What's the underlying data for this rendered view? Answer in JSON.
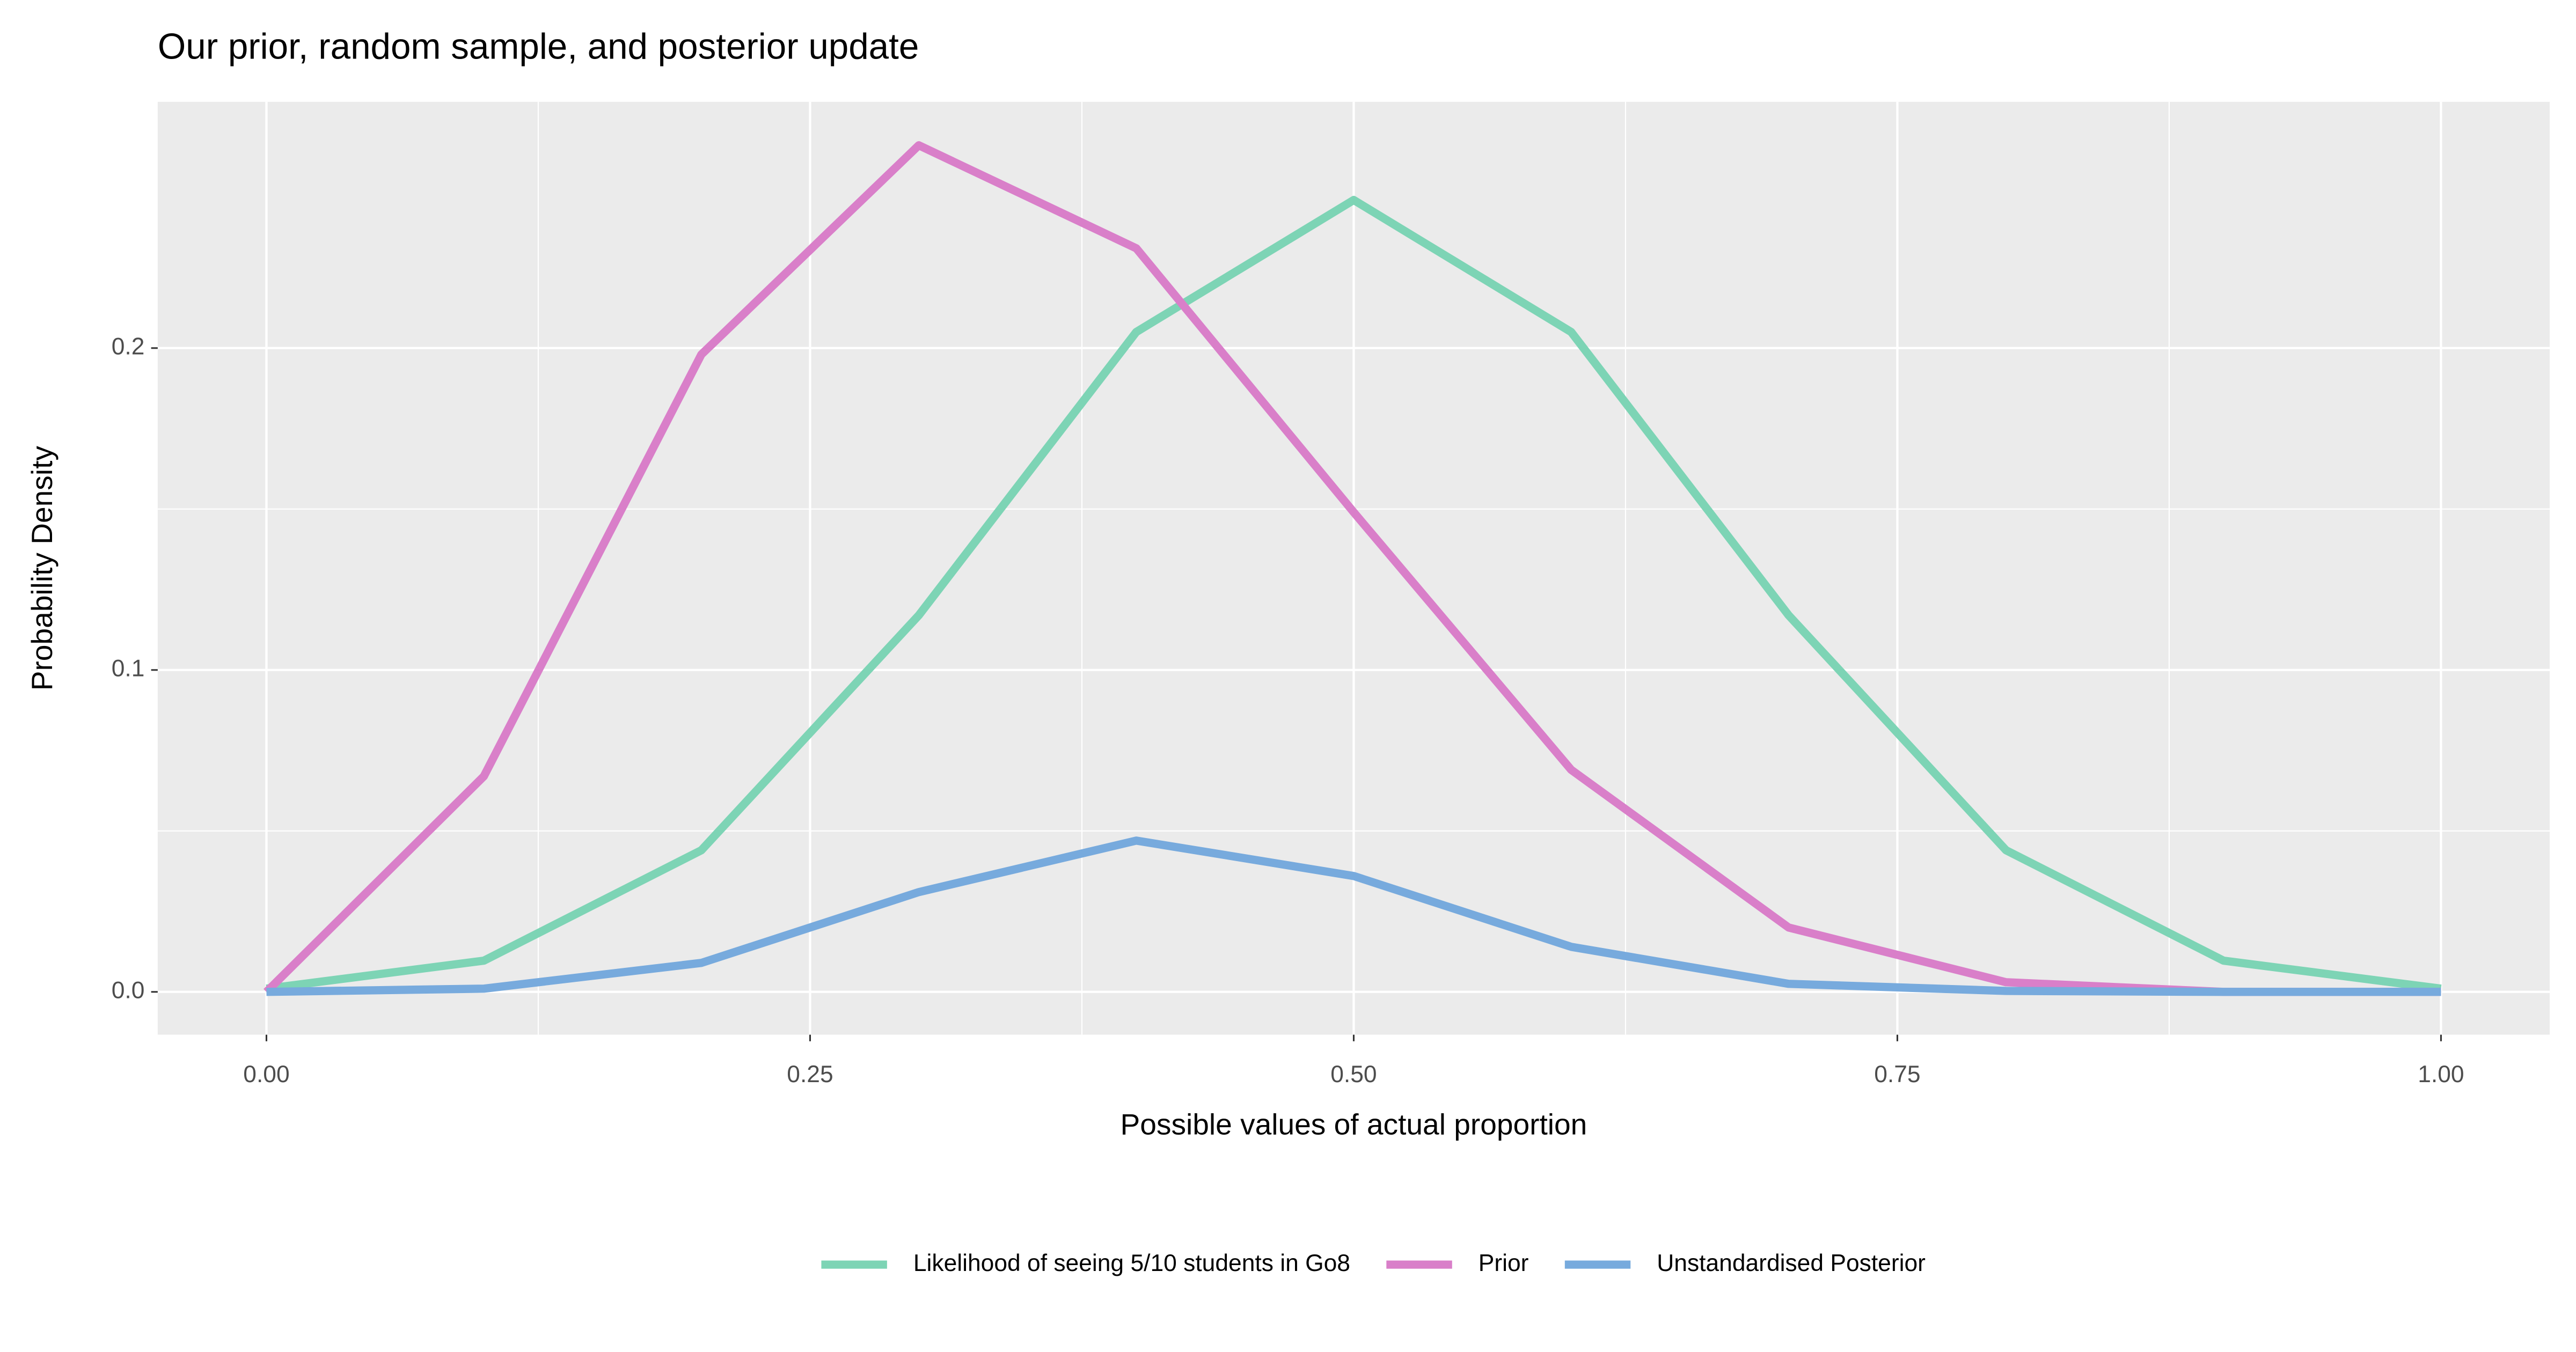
{
  "chart_data": {
    "type": "line",
    "title": "Our prior, random sample, and posterior update",
    "x_label": "Possible values of actual proportion",
    "y_label": "Probability Density",
    "x": [
      0,
      0.1,
      0.2,
      0.3,
      0.4,
      0.5,
      0.6,
      0.7,
      0.8,
      0.9,
      1.0
    ],
    "series": [
      {
        "name": "Likelihood of seeing 5/10 students in Go8",
        "color": "#7dd4b5",
        "values": [
          0.001,
          0.0097,
          0.044,
          0.117,
          0.205,
          0.246,
          0.205,
          0.117,
          0.044,
          0.0097,
          0.001
        ]
      },
      {
        "name": "Prior",
        "color": "#d97fc9",
        "values": [
          0.0,
          0.067,
          0.198,
          0.263,
          0.231,
          0.149,
          0.069,
          0.02,
          0.003,
          0.0,
          0.0
        ]
      },
      {
        "name": "Unstandardised Posterior",
        "color": "#77aadd",
        "values": [
          0.0,
          0.001,
          0.009,
          0.031,
          0.047,
          0.036,
          0.014,
          0.0025,
          0.0003,
          0.0,
          0.0
        ]
      }
    ],
    "xlim": [
      -0.05,
      1.05
    ],
    "ylim": [
      -0.0133,
      0.2765
    ],
    "xticks": [
      {
        "value": 0,
        "label": "0.00"
      },
      {
        "value": 0.25,
        "label": "0.25"
      },
      {
        "value": 0.5,
        "label": "0.50"
      },
      {
        "value": 0.75,
        "label": "0.75"
      },
      {
        "value": 1,
        "label": "1.00"
      }
    ],
    "yticks": [
      {
        "value": 0,
        "label": "0.0"
      },
      {
        "value": 0.1,
        "label": "0.1"
      },
      {
        "value": 0.2,
        "label": "0.2"
      }
    ],
    "grid": true,
    "legend": "bottom"
  }
}
